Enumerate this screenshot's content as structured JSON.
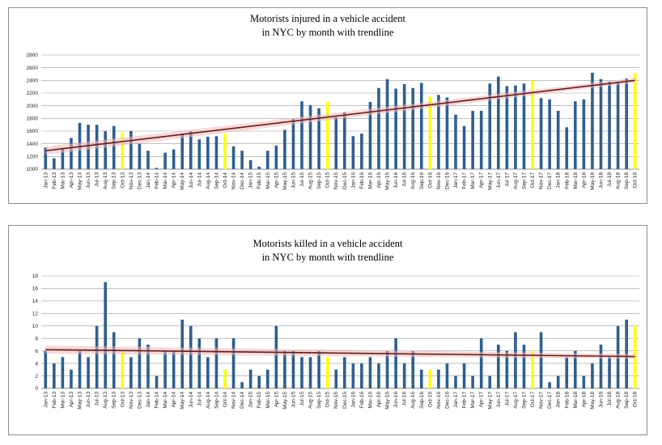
{
  "charts": {
    "injured": {
      "title_line1": "Motorists injured in a vehicle accident",
      "title_line2": "in NYC by month with trendline"
    },
    "killed": {
      "title_line1": "Motorists killed in a vehicle accident",
      "title_line2": "in NYC by month with trendline"
    }
  },
  "colors": {
    "bar": "#2e5e8e",
    "highlight": "#ffff00",
    "trend_line": "#5c1f1f",
    "trend_band": "#f2b8b8",
    "grid": "#9a9a9a"
  },
  "chart_data": [
    {
      "type": "bar",
      "title": "Motorists injured in a vehicle accident in NYC by month with trendline",
      "categories": [
        "Jan-13",
        "Feb-13",
        "Mar-13",
        "Apr-13",
        "May-13",
        "Jun-13",
        "Jul-13",
        "Aug-13",
        "Sep-13",
        "Oct-13",
        "Nov-13",
        "Dec-13",
        "Jan-14",
        "Feb-14",
        "Mar-14",
        "Apr-14",
        "May-14",
        "Jun-14",
        "Jul-14",
        "Aug-14",
        "Sep-14",
        "Oct-14",
        "Nov-14",
        "Dec-14",
        "Jan-15",
        "Feb-15",
        "Mar-15",
        "Apr-15",
        "May-15",
        "Jun-15",
        "Jul-15",
        "Aug-15",
        "Sep-15",
        "Oct-15",
        "Nov-15",
        "Dec-15",
        "Jan-16",
        "Feb-16",
        "Mar-16",
        "Apr-16",
        "May-16",
        "Jun-16",
        "Jul-16",
        "Aug-16",
        "Sep-16",
        "Oct-16",
        "Nov-16",
        "Dec-16",
        "Jan-17",
        "Feb-17",
        "Mar-17",
        "Apr-17",
        "May-17",
        "Jun-17",
        "Jul-17",
        "Aug-17",
        "Sep-17",
        "Oct-17",
        "Nov-17",
        "Dec-17",
        "Jan-18",
        "Feb-18",
        "Mar-18",
        "Apr-18",
        "May-18",
        "Jun-18",
        "Jul-18",
        "Aug-18",
        "Sep-18",
        "Oct-18"
      ],
      "series": [
        {
          "values": [
            1340,
            1170,
            1330,
            1490,
            1730,
            1700,
            1700,
            1600,
            1680,
            1580,
            1600,
            1400,
            1290,
            1020,
            1260,
            1310,
            1560,
            1600,
            1470,
            1510,
            1520,
            1560,
            1360,
            1290,
            1140,
            1040,
            1290,
            1370,
            1620,
            1790,
            2070,
            2010,
            1960,
            2060,
            1820,
            1900,
            1520,
            1560,
            2060,
            2280,
            2420,
            2270,
            2340,
            2280,
            2360,
            2140,
            2170,
            2130,
            1860,
            1680,
            1920,
            1920,
            2350,
            2460,
            2310,
            2320,
            2350,
            2400,
            2120,
            2100,
            1920,
            1660,
            2070,
            2100,
            2520,
            2420,
            2380,
            2380,
            2430,
            2510
          ]
        }
      ],
      "highlighted_categories": [
        "Oct-13",
        "Oct-14",
        "Oct-15",
        "Oct-16",
        "Oct-17",
        "Oct-18"
      ],
      "trendline": {
        "start": 1290,
        "end": 2400
      },
      "ylim": [
        1000,
        2800
      ],
      "yticks": [
        1000,
        1200,
        1400,
        1600,
        1800,
        2000,
        2200,
        2400,
        2600,
        2800
      ],
      "grid": true,
      "legend": "none"
    },
    {
      "type": "bar",
      "title": "Motorists killed in a vehicle accident in NYC by month with trendline",
      "categories": [
        "Jan-13",
        "Feb-13",
        "Mar-13",
        "Apr-13",
        "May-13",
        "Jun-13",
        "Jul-13",
        "Aug-13",
        "Sep-13",
        "Oct-13",
        "Nov-13",
        "Dec-13",
        "Jan-14",
        "Feb-14",
        "Mar-14",
        "Apr-14",
        "May-14",
        "Jun-14",
        "Jul-14",
        "Aug-14",
        "Sep-14",
        "Oct-14",
        "Nov-14",
        "Dec-14",
        "Jan-15",
        "Feb-15",
        "Mar-15",
        "Apr-15",
        "May-15",
        "Jun-15",
        "Jul-15",
        "Aug-15",
        "Sep-15",
        "Oct-15",
        "Nov-15",
        "Dec-15",
        "Jan-16",
        "Feb-16",
        "Mar-16",
        "Apr-16",
        "May-16",
        "Jun-16",
        "Jul-16",
        "Aug-16",
        "Sep-16",
        "Oct-16",
        "Nov-16",
        "Dec-16",
        "Jan-17",
        "Feb-17",
        "Mar-17",
        "Apr-17",
        "May-17",
        "Jun-17",
        "Jul-17",
        "Aug-17",
        "Sep-17",
        "Oct-17",
        "Nov-17",
        "Dec-17",
        "Jan-18",
        "Feb-18",
        "Mar-18",
        "Apr-18",
        "May-18",
        "Jun-18",
        "Jul-18",
        "Aug-18",
        "Sep-18",
        "Oct-18"
      ],
      "series": [
        {
          "values": [
            6,
            4,
            5,
            3,
            6,
            5,
            10,
            17,
            9,
            6,
            5,
            8,
            7,
            2,
            6,
            6,
            11,
            10,
            8,
            5,
            8,
            3,
            8,
            1,
            3,
            2,
            3,
            10,
            6,
            6,
            5,
            5,
            6,
            5,
            3,
            5,
            4,
            4,
            5,
            4,
            6,
            8,
            4,
            6,
            3,
            3,
            3,
            4,
            2,
            4,
            2,
            8,
            2,
            7,
            6,
            9,
            7,
            6,
            9,
            1,
            2,
            5,
            6,
            2,
            4,
            7,
            5,
            10,
            11,
            10
          ]
        }
      ],
      "highlighted_categories": [
        "Oct-13",
        "Oct-14",
        "Oct-15",
        "Oct-16",
        "Oct-17",
        "Oct-18"
      ],
      "trendline": {
        "start": 6.2,
        "end": 5.1
      },
      "ylim": [
        0,
        18
      ],
      "yticks": [
        0,
        2,
        4,
        6,
        8,
        10,
        12,
        14,
        16,
        18
      ],
      "ytick_labels": [
        "0",
        "2",
        "4",
        "6",
        "8",
        "10",
        "12",
        "14",
        "16",
        "18"
      ],
      "grid": true,
      "legend": "none"
    }
  ]
}
